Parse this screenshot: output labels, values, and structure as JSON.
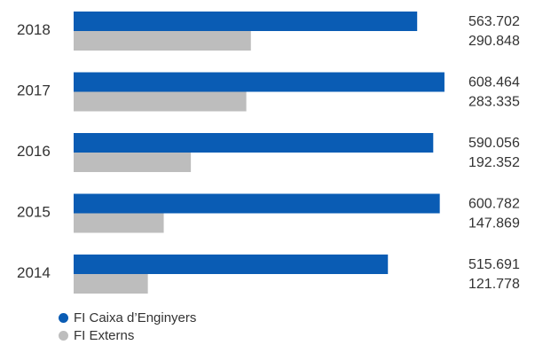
{
  "chart_data": {
    "type": "bar",
    "orientation": "horizontal",
    "categories": [
      "2018",
      "2017",
      "2016",
      "2015",
      "2014"
    ],
    "series": [
      {
        "name": "FI Caixa d'Enginyers",
        "color": "#0a5cb4",
        "values": [
          563702,
          608464,
          590056,
          600782,
          515691
        ],
        "labels": [
          "563.702",
          "608.464",
          "590.056",
          "600.782",
          "515.691"
        ]
      },
      {
        "name": "FI Externs",
        "color": "#bdbdbd",
        "values": [
          290848,
          283335,
          192352,
          147869,
          121778
        ],
        "labels": [
          "290.848",
          "283.335",
          "192.352",
          "147.869",
          "121.778"
        ]
      }
    ],
    "xlim": [
      0,
      610000
    ],
    "grid": false,
    "legend_position": "bottom-left"
  },
  "legend": {
    "items": [
      {
        "label": "FI Caixa d’Enginyers",
        "color": "#0a5cb4"
      },
      {
        "label": "FI Externs",
        "color": "#bdbdbd"
      }
    ]
  }
}
